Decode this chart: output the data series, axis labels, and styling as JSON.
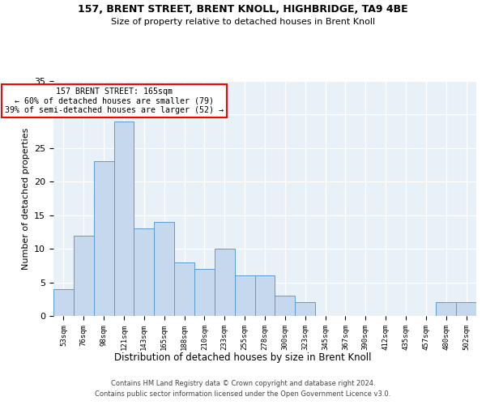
{
  "title1": "157, BRENT STREET, BRENT KNOLL, HIGHBRIDGE, TA9 4BE",
  "title2": "Size of property relative to detached houses in Brent Knoll",
  "xlabel": "Distribution of detached houses by size in Brent Knoll",
  "ylabel": "Number of detached properties",
  "categories": [
    "53sqm",
    "76sqm",
    "98sqm",
    "121sqm",
    "143sqm",
    "165sqm",
    "188sqm",
    "210sqm",
    "233sqm",
    "255sqm",
    "278sqm",
    "300sqm",
    "323sqm",
    "345sqm",
    "367sqm",
    "390sqm",
    "412sqm",
    "435sqm",
    "457sqm",
    "480sqm",
    "502sqm"
  ],
  "values": [
    4,
    12,
    23,
    29,
    13,
    14,
    8,
    7,
    10,
    6,
    6,
    3,
    2,
    0,
    0,
    0,
    0,
    0,
    0,
    2,
    2
  ],
  "bar_color": "#c5d8ed",
  "bar_edge_color": "#5b9bd5",
  "highlight_index": 5,
  "annotation_text": "157 BRENT STREET: 165sqm\n← 60% of detached houses are smaller (79)\n39% of semi-detached houses are larger (52) →",
  "annotation_box_color": "white",
  "annotation_box_edge": "red",
  "ylim": [
    0,
    35
  ],
  "yticks": [
    0,
    5,
    10,
    15,
    20,
    25,
    30,
    35
  ],
  "background_color": "#e8f0f8",
  "grid_color": "white",
  "footer1": "Contains HM Land Registry data © Crown copyright and database right 2024.",
  "footer2": "Contains public sector information licensed under the Open Government Licence v3.0."
}
